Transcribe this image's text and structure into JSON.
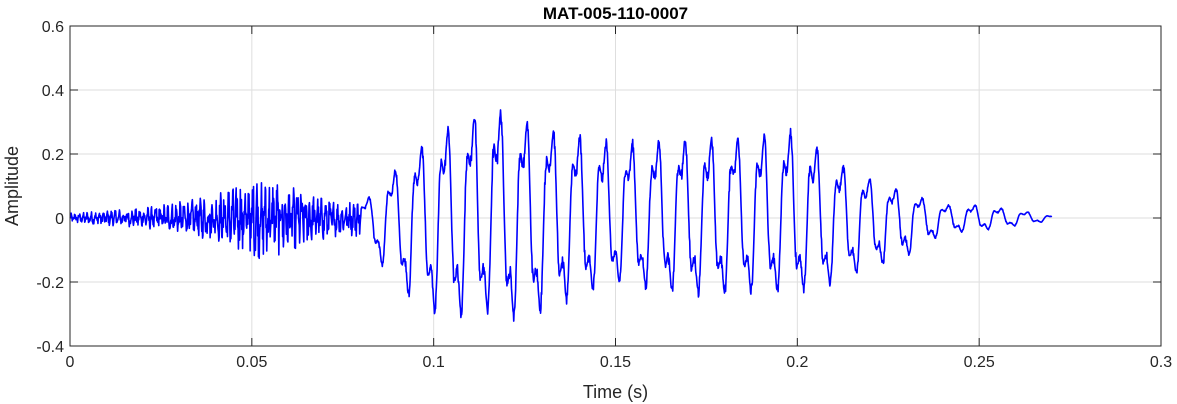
{
  "chart_data": {
    "type": "line",
    "title": "MAT-005-110-0007",
    "xlabel": "Time (s)",
    "ylabel": "Amplitude",
    "xlim": [
      0,
      0.3
    ],
    "ylim": [
      -0.4,
      0.6
    ],
    "xticks": [
      0,
      0.05,
      0.1,
      0.15,
      0.2,
      0.25,
      0.3
    ],
    "xtick_labels": [
      "0",
      "0.05",
      "0.1",
      "0.15",
      "0.2",
      "0.25",
      "0.3"
    ],
    "yticks": [
      -0.4,
      -0.2,
      0,
      0.2,
      0.4,
      0.6
    ],
    "ytick_labels": [
      "-0.4",
      "-0.2",
      "0",
      "0.2",
      "0.4",
      "0.6"
    ],
    "grid": true,
    "line_color": "#0000ff",
    "series": [
      {
        "x_start": 0,
        "x_end": 0.27,
        "envelope": {
          "x": [
            0,
            0.02,
            0.04,
            0.05,
            0.06,
            0.075,
            0.08,
            0.085,
            0.09,
            0.1,
            0.11,
            0.115,
            0.12,
            0.13,
            0.15,
            0.17,
            0.19,
            0.2,
            0.21,
            0.22,
            0.23,
            0.24,
            0.25,
            0.26,
            0.27
          ],
          "max": [
            0.015,
            0.03,
            0.07,
            0.13,
            0.1,
            0.04,
            0.06,
            0.11,
            0.2,
            0.32,
            0.4,
            0.43,
            0.41,
            0.35,
            0.29,
            0.31,
            0.32,
            0.34,
            0.22,
            0.15,
            0.1,
            0.05,
            0.05,
            0.03,
            0.01
          ],
          "min": [
            -0.015,
            -0.03,
            -0.07,
            -0.13,
            -0.11,
            -0.05,
            -0.06,
            -0.17,
            -0.27,
            -0.37,
            -0.39,
            -0.36,
            -0.4,
            -0.36,
            -0.25,
            -0.3,
            -0.29,
            -0.29,
            -0.26,
            -0.2,
            -0.15,
            -0.06,
            -0.05,
            -0.03,
            -0.01
          ]
        }
      }
    ]
  }
}
